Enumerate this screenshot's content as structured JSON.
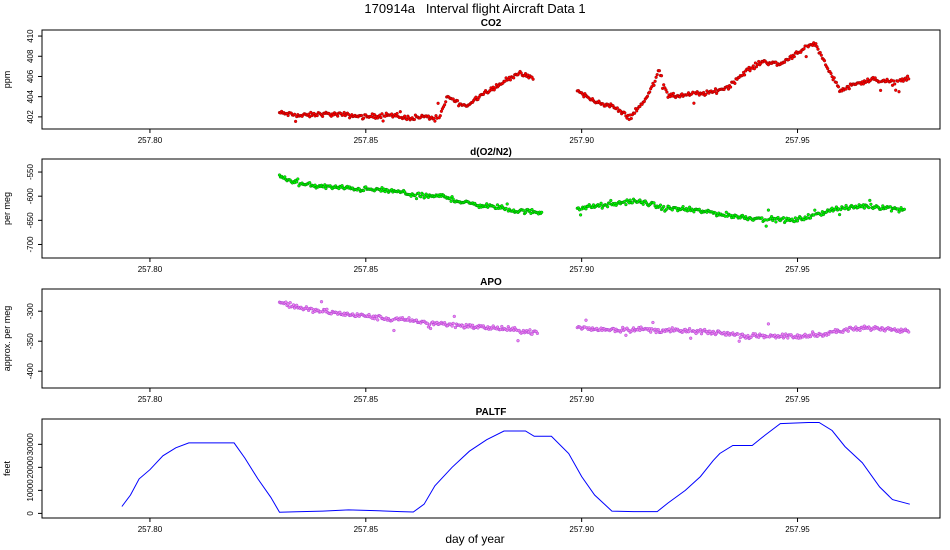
{
  "figure": {
    "title": "170914a   Interval flight Aircraft Data 1",
    "xlabel": "day of year"
  },
  "chart_data": [
    {
      "type": "scatter",
      "title": "CO2",
      "ylabel": "ppm",
      "xlim": [
        257.775,
        257.983
      ],
      "ylim": [
        400.8,
        410.6
      ],
      "xticks": [
        257.8,
        257.85,
        257.9,
        257.95
      ],
      "xtick_labels": [
        "257.80",
        "257.85",
        "257.90",
        "257.95"
      ],
      "yticks": [
        402,
        404,
        406,
        408,
        410
      ],
      "ytick_labels": [
        "402",
        "404",
        "406",
        "408",
        "410"
      ],
      "color": "#ff0000",
      "edge_color": "#800000",
      "x": [
        257.83,
        257.835,
        257.84,
        257.845,
        257.85,
        257.855,
        257.859,
        257.863,
        257.867,
        257.869,
        257.873,
        257.877,
        257.881,
        257.885,
        257.889,
        257.899,
        257.903,
        257.907,
        257.911,
        257.915,
        257.918,
        257.92,
        257.925,
        257.93,
        257.934,
        257.938,
        257.942,
        257.946,
        257.95,
        257.954,
        257.957,
        257.96,
        257.964,
        257.968,
        257.972,
        257.976
      ],
      "y": [
        402.4,
        402.1,
        402.3,
        402.2,
        402.0,
        402.2,
        401.9,
        402.0,
        401.9,
        404.0,
        403.0,
        404.3,
        405.2,
        406.3,
        405.8,
        404.6,
        403.5,
        403.1,
        401.9,
        403.8,
        406.6,
        404.0,
        404.2,
        404.4,
        405.0,
        406.5,
        407.5,
        407.2,
        408.4,
        409.3,
        406.8,
        404.6,
        405.4,
        405.7,
        405.4,
        405.9
      ]
    },
    {
      "type": "scatter",
      "title": "d(O2/N2)",
      "ylabel": "per meg",
      "xlim": [
        257.775,
        257.983
      ],
      "ylim": [
        -728,
        -523
      ],
      "xticks": [
        257.8,
        257.85,
        257.9,
        257.95
      ],
      "xtick_labels": [
        "257.80",
        "257.85",
        "257.90",
        "257.95"
      ],
      "yticks": [
        -550,
        -600,
        -650,
        -700
      ],
      "ytick_labels": [
        "-550",
        "-600",
        "-650",
        "-700"
      ],
      "color": "#00ff00",
      "edge_color": "#006400",
      "x": [
        257.83,
        257.835,
        257.84,
        257.845,
        257.85,
        257.855,
        257.86,
        257.864,
        257.868,
        257.872,
        257.876,
        257.88,
        257.884,
        257.888,
        257.891,
        257.899,
        257.903,
        257.907,
        257.911,
        257.915,
        257.919,
        257.923,
        257.929,
        257.934,
        257.939,
        257.944,
        257.949,
        257.954,
        257.958,
        257.962,
        257.966,
        257.97,
        257.975
      ],
      "y": [
        -560,
        -575,
        -580,
        -583,
        -586,
        -588,
        -595,
        -600,
        -600,
        -612,
        -618,
        -622,
        -630,
        -632,
        -633,
        -625,
        -621,
        -618,
        -610,
        -614,
        -625,
        -627,
        -632,
        -640,
        -645,
        -648,
        -650,
        -640,
        -627,
        -624,
        -620,
        -623,
        -628
      ]
    },
    {
      "type": "scatter",
      "title": "APO",
      "ylabel": "approx. per meg",
      "xlim": [
        257.775,
        257.983
      ],
      "ylim": [
        -428,
        -263
      ],
      "xticks": [
        257.8,
        257.85,
        257.9,
        257.95
      ],
      "xtick_labels": [
        "257.80",
        "257.85",
        "257.90",
        "257.95"
      ],
      "yticks": [
        -300,
        -350,
        -400
      ],
      "ytick_labels": [
        "-300",
        "-350",
        "-400"
      ],
      "color": "#ee82ee",
      "edge_color": "#9932cc",
      "x": [
        257.83,
        257.835,
        257.84,
        257.845,
        257.85,
        257.855,
        257.86,
        257.865,
        257.87,
        257.875,
        257.88,
        257.885,
        257.89,
        257.899,
        257.904,
        257.909,
        257.914,
        257.919,
        257.924,
        257.929,
        257.934,
        257.939,
        257.944,
        257.949,
        257.954,
        257.958,
        257.963,
        257.968,
        257.973,
        257.976
      ],
      "y": [
        -285,
        -295,
        -300,
        -305,
        -308,
        -313,
        -315,
        -320,
        -322,
        -326,
        -328,
        -332,
        -336,
        -328,
        -330,
        -331,
        -330,
        -332,
        -333,
        -335,
        -337,
        -342,
        -340,
        -343,
        -340,
        -335,
        -330,
        -328,
        -330,
        -332
      ]
    },
    {
      "type": "line",
      "title": "PALTF",
      "ylabel": "feet",
      "xlim": [
        257.775,
        257.983
      ],
      "ylim": [
        -2000,
        41000
      ],
      "xticks": [
        257.8,
        257.85,
        257.9,
        257.95
      ],
      "xtick_labels": [
        "257.80",
        "257.85",
        "257.90",
        "257.95"
      ],
      "yticks": [
        0,
        10000,
        20000,
        30000
      ],
      "ytick_labels": [
        "0",
        "10000",
        "20000",
        "30000"
      ],
      "color": "#0000ff",
      "x": [
        257.7935,
        257.7955,
        257.7975,
        257.8,
        257.803,
        257.806,
        257.809,
        257.812,
        257.8145,
        257.8175,
        257.8195,
        257.822,
        257.825,
        257.828,
        257.83,
        257.834,
        257.84,
        257.846,
        257.852,
        257.858,
        257.861,
        257.8635,
        257.866,
        257.87,
        257.874,
        257.878,
        257.882,
        257.884,
        257.887,
        257.889,
        257.893,
        257.897,
        257.9,
        257.903,
        257.907,
        257.912,
        257.9175,
        257.92,
        257.924,
        257.9275,
        257.9305,
        257.932,
        257.935,
        257.9395,
        257.9425,
        257.946,
        257.9525,
        257.955,
        257.958,
        257.961,
        257.965,
        257.969,
        257.972,
        257.976
      ],
      "y": [
        3000,
        8000,
        15000,
        19000,
        25000,
        28500,
        30600,
        30600,
        30600,
        30600,
        30600,
        24000,
        15000,
        7000,
        500,
        700,
        1000,
        1500,
        1200,
        800,
        600,
        4000,
        12000,
        20000,
        27000,
        32000,
        35800,
        35800,
        35800,
        33500,
        33500,
        26000,
        16000,
        8000,
        1000,
        800,
        800,
        4500,
        10000,
        16000,
        23000,
        26000,
        29500,
        29500,
        34000,
        39000,
        39500,
        39500,
        36000,
        29000,
        22000,
        11500,
        6000,
        4000
      ]
    }
  ]
}
